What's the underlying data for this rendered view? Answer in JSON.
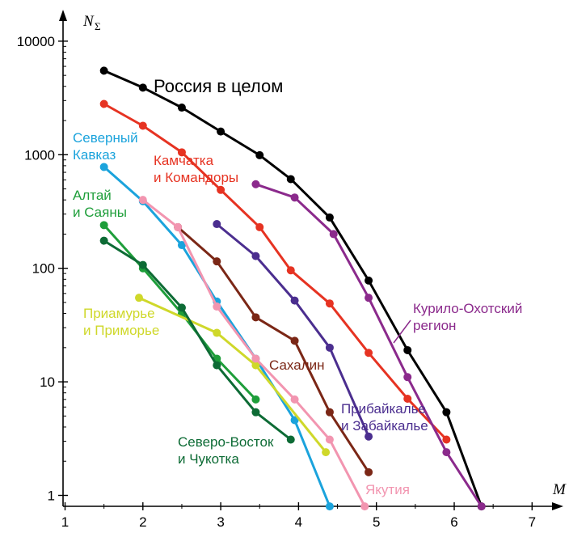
{
  "chart_data": {
    "type": "line",
    "title": "",
    "xlabel": "M",
    "ylabel": "N",
    "ylabel_sub": "Σ",
    "x_scale": "linear",
    "y_scale": "log",
    "xlim": [
      1,
      7.5
    ],
    "ylim": [
      0.8,
      20000
    ],
    "x_ticks": [
      1,
      2,
      3,
      4,
      5,
      6,
      7
    ],
    "y_ticks": [
      1,
      10,
      100,
      1000,
      10000
    ],
    "x_tick_labels": [
      "1",
      "2",
      "3",
      "4",
      "5",
      "6",
      "7"
    ],
    "y_tick_labels": [
      "1",
      "10",
      "100",
      "1000",
      "10000"
    ],
    "grid": false,
    "series": [
      {
        "id": "russia",
        "label_lines": [
          "Россия в целом"
        ],
        "color": "#000000",
        "x": [
          1.5,
          2.0,
          2.5,
          3.0,
          3.5,
          3.9,
          4.4,
          4.9,
          5.4,
          5.9,
          6.35
        ],
        "y": [
          5500,
          3900,
          2600,
          1600,
          990,
          610,
          280,
          78,
          19,
          5.4,
          0.8
        ]
      },
      {
        "id": "kamchatka",
        "label_lines": [
          "Камчатка",
          "и Командоры"
        ],
        "color": "#e63322",
        "x": [
          1.5,
          2.0,
          2.5,
          3.0,
          3.5,
          3.9,
          4.4,
          4.9,
          5.4,
          5.9
        ],
        "y": [
          2800,
          1800,
          1050,
          490,
          230,
          96,
          49,
          18,
          7.1,
          3.1
        ]
      },
      {
        "id": "kuril",
        "label_lines": [
          "Курило-Охотский",
          "регион"
        ],
        "color": "#8b2a8c",
        "x": [
          3.45,
          3.95,
          4.45,
          4.9,
          5.4,
          5.9,
          6.35
        ],
        "y": [
          550,
          420,
          200,
          55,
          11,
          2.4,
          0.8
        ]
      },
      {
        "id": "caucasus",
        "label_lines": [
          "Северный",
          "Кавказ"
        ],
        "color": "#1ba3dc",
        "x": [
          1.5,
          2.0,
          2.5,
          2.95,
          3.45,
          3.95,
          4.4
        ],
        "y": [
          780,
          390,
          160,
          51,
          16,
          4.6,
          0.8
        ]
      },
      {
        "id": "altai",
        "label_lines": [
          "Алтай",
          "и Саяны"
        ],
        "color": "#1e9e3a",
        "x": [
          1.5,
          2.0,
          2.5,
          2.95,
          3.45
        ],
        "y": [
          240,
          100,
          40,
          16,
          7
        ]
      },
      {
        "id": "amur",
        "label_lines": [
          "Приамурье",
          "и Приморье"
        ],
        "color": "#cfd82a",
        "x": [
          1.95,
          2.95,
          3.45,
          4.35
        ],
        "y": [
          55,
          27,
          14,
          2.4
        ]
      },
      {
        "id": "sakhalin",
        "label_lines": [
          "Сахалин"
        ],
        "color": "#7b2716",
        "x": [
          2.45,
          2.95,
          3.45,
          3.95,
          4.4,
          4.9
        ],
        "y": [
          230,
          115,
          37,
          23,
          5.4,
          1.6
        ]
      },
      {
        "id": "baikal",
        "label_lines": [
          "Прибайкалье",
          "и Забайкалье"
        ],
        "color": "#4b2e8f",
        "x": [
          2.95,
          3.45,
          3.95,
          4.4,
          4.9
        ],
        "y": [
          245,
          128,
          52,
          20,
          3.3
        ]
      },
      {
        "id": "yakutia",
        "label_lines": [
          "Якутия"
        ],
        "color": "#f295b0",
        "x": [
          2.0,
          2.45,
          2.95,
          3.45,
          3.95,
          4.4,
          4.85
        ],
        "y": [
          400,
          230,
          46,
          16,
          7,
          3.1,
          0.8
        ]
      },
      {
        "id": "chukotka",
        "label_lines": [
          "Северо-Восток",
          "и Чукотка"
        ],
        "color": "#0d6b35",
        "x": [
          1.5,
          2.0,
          2.5,
          2.95,
          3.45,
          3.9
        ],
        "y": [
          175,
          107,
          45,
          14,
          5.4,
          3.1
        ]
      }
    ]
  }
}
